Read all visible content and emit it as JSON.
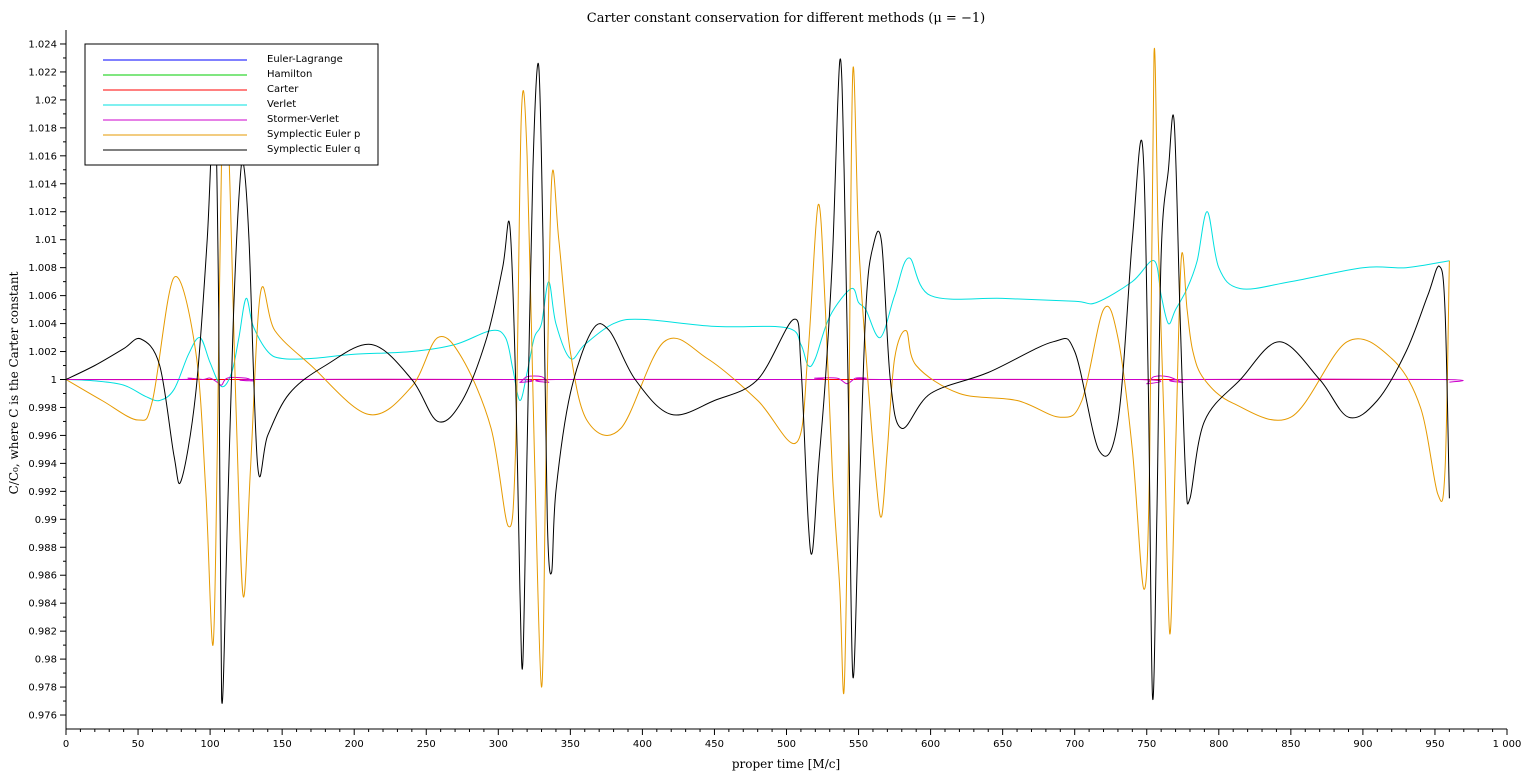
{
  "chart_data": {
    "type": "line",
    "title": "Carter constant conservation for different methods (μ = −1)",
    "xlabel": "proper time [M/c]",
    "ylabel": "C/C₀, where C is the Carter constant",
    "xlim": [
      0,
      1000
    ],
    "ylim": [
      0.975,
      1.025
    ],
    "x_ticks": [
      0,
      50,
      100,
      150,
      200,
      250,
      300,
      350,
      400,
      450,
      500,
      550,
      600,
      650,
      700,
      750,
      800,
      850,
      900,
      950,
      1000
    ],
    "x_tick_labels": [
      "0",
      "50",
      "100",
      "150",
      "200",
      "250",
      "300",
      "350",
      "400",
      "450",
      "500",
      "550",
      "600",
      "650",
      "700",
      "750",
      "800",
      "850",
      "900",
      "950",
      "1 000"
    ],
    "y_ticks": [
      0.976,
      0.978,
      0.98,
      0.982,
      0.984,
      0.986,
      0.988,
      0.99,
      0.992,
      0.994,
      0.996,
      0.998,
      1,
      1.002,
      1.004,
      1.006,
      1.008,
      1.01,
      1.012,
      1.014,
      1.016,
      1.018,
      1.02,
      1.022,
      1.024
    ],
    "y_tick_labels": [
      "0.976",
      "0.978",
      "0.98",
      "0.982",
      "0.984",
      "0.986",
      "0.988",
      "0.99",
      "0.992",
      "0.994",
      "0.996",
      "0.998",
      "1",
      "1.002",
      "1.004",
      "1.006",
      "1.008",
      "1.01",
      "1.012",
      "1.014",
      "1.016",
      "1.018",
      "1.02",
      "1.022",
      "1.024"
    ],
    "grid": false,
    "legend_position": "top-left",
    "series": [
      {
        "name": "Euler-Lagrange",
        "color": "#0000ff",
        "x": [
          0,
          960
        ],
        "y": [
          1.0,
          1.0
        ]
      },
      {
        "name": "Hamilton",
        "color": "#00cc00",
        "x": [
          0,
          960
        ],
        "y": [
          1.0,
          1.0
        ]
      },
      {
        "name": "Carter",
        "color": "#ff0000",
        "x": [
          0,
          960
        ],
        "y": [
          1.0,
          1.0
        ]
      },
      {
        "name": "Verlet",
        "color": "#00e0e0",
        "x": [
          0,
          20,
          40,
          55,
          65,
          75,
          85,
          93,
          100,
          108,
          115,
          120,
          125,
          130,
          140,
          150,
          170,
          200,
          240,
          270,
          295,
          305,
          310,
          315,
          320,
          325,
          330,
          335,
          340,
          350,
          360,
          380,
          400,
          450,
          500,
          510,
          515,
          520,
          530,
          545,
          550,
          555,
          565,
          575,
          585,
          600,
          650,
          700,
          715,
          740,
          755,
          760,
          765,
          770,
          778,
          785,
          792,
          800,
          815,
          850,
          900,
          930,
          960
        ],
        "y": [
          1.0,
          0.9999,
          0.9996,
          0.9988,
          0.9985,
          0.9993,
          1.0018,
          1.003,
          1.0012,
          0.9995,
          1.0005,
          1.003,
          1.0058,
          1.0038,
          1.002,
          1.0015,
          1.0015,
          1.0018,
          1.002,
          1.0025,
          1.0035,
          1.003,
          1.0008,
          0.9985,
          1.0005,
          1.003,
          1.004,
          1.007,
          1.004,
          1.0015,
          1.0025,
          1.004,
          1.0043,
          1.0038,
          1.0037,
          1.0025,
          1.001,
          1.0015,
          1.0045,
          1.0065,
          1.0055,
          1.005,
          1.003,
          1.006,
          1.0087,
          1.006,
          1.0058,
          1.0056,
          1.0055,
          1.007,
          1.0085,
          1.006,
          1.004,
          1.005,
          1.0065,
          1.0085,
          1.012,
          1.008,
          1.0065,
          1.007,
          1.008,
          1.008,
          1.0085
        ]
      },
      {
        "name": "Stormer-Verlet",
        "color": "#cc00cc",
        "x": [
          0,
          80,
          85,
          95,
          100,
          105,
          108,
          112,
          125,
          130,
          135,
          310,
          315,
          320,
          330,
          335,
          340,
          510,
          520,
          535,
          542,
          548,
          555,
          565,
          745,
          750,
          755,
          765,
          775,
          780,
          955,
          960
        ],
        "y": [
          1.0,
          1.0,
          1.0001,
          1.0,
          1.0001,
          0.9998,
          0.9996,
          1.0001,
          1.0001,
          0.9999,
          1.0,
          1.0,
          0.9998,
          1.0002,
          1.0002,
          0.9998,
          1.0,
          1.0,
          1.0001,
          1.0001,
          0.9997,
          1.0001,
          1.0001,
          1.0,
          1.0,
          0.9997,
          1.0002,
          1.0002,
          0.9998,
          1.0,
          1.0,
          0.9998
        ]
      },
      {
        "name": "Symplectic Euler p",
        "color": "#e69a00",
        "x": [
          0,
          25,
          50,
          60,
          75,
          90,
          97,
          102,
          105,
          108,
          112,
          118,
          123,
          128,
          135,
          145,
          170,
          210,
          240,
          258,
          275,
          295,
          307,
          312,
          316,
          320,
          325,
          330,
          333,
          337,
          342,
          350,
          362,
          385,
          415,
          445,
          480,
          507,
          515,
          522,
          527,
          532,
          537,
          540,
          543,
          546,
          550,
          555,
          562,
          566,
          570,
          575,
          583,
          590,
          620,
          660,
          690,
          705,
          720,
          730,
          740,
          748,
          752,
          755,
          758,
          762,
          766,
          770,
          774,
          778,
          782,
          790,
          810,
          850,
          889,
          920,
          940,
          952,
          957,
          960
        ],
        "y": [
          1.0,
          0.9985,
          0.9971,
          0.9985,
          1.0073,
          1.002,
          0.992,
          0.981,
          0.995,
          1.016,
          1.019,
          0.998,
          0.9845,
          0.9935,
          1.0062,
          1.0035,
          1.001,
          0.9975,
          0.9995,
          1.003,
          1.0015,
          0.9965,
          0.9895,
          0.995,
          1.019,
          1.016,
          0.995,
          0.978,
          0.994,
          1.0142,
          1.01,
          1.002,
          0.997,
          0.9965,
          1.0027,
          1.0015,
          0.9985,
          0.9955,
          1.002,
          1.0125,
          1.005,
          0.993,
          0.985,
          0.9778,
          0.995,
          1.022,
          1.01,
          1.002,
          0.993,
          0.9902,
          0.995,
          1.0015,
          1.0035,
          1.001,
          0.999,
          0.9985,
          0.9973,
          0.9985,
          1.005,
          1.003,
          0.995,
          0.985,
          0.994,
          1.0233,
          1.01,
          0.997,
          0.9818,
          0.995,
          1.0087,
          1.005,
          1.002,
          1.0,
          0.9983,
          0.9973,
          1.0027,
          1.0015,
          0.998,
          0.9918,
          0.9935,
          1.0085
        ]
      },
      {
        "name": "Symplectic Euler q",
        "color": "#000000",
        "x": [
          0,
          20,
          40,
          52,
          65,
          75,
          80,
          90,
          98,
          103,
          106,
          108,
          112,
          116,
          120,
          123,
          127,
          133,
          140,
          155,
          180,
          212,
          240,
          258,
          275,
          292,
          303,
          308,
          312,
          315,
          317,
          320,
          324,
          328,
          331,
          334,
          337,
          340,
          350,
          365,
          377,
          395,
          420,
          450,
          480,
          505,
          510,
          515,
          518,
          522,
          527,
          532,
          537,
          540,
          543,
          546,
          550,
          555,
          560,
          566,
          572,
          580,
          600,
          640,
          685,
          700,
          717,
          730,
          740,
          747,
          751,
          754,
          757,
          760,
          765,
          769,
          773,
          777,
          780,
          790,
          815,
          842,
          870,
          890,
          910,
          930,
          945,
          953,
          957,
          960
        ],
        "y": [
          1.0,
          1.001,
          1.0022,
          1.0029,
          1.001,
          0.9945,
          0.9928,
          0.999,
          1.01,
          1.02,
          1.005,
          0.9772,
          0.99,
          1.004,
          1.013,
          1.0155,
          1.01,
          0.9938,
          0.996,
          0.999,
          1.001,
          1.0025,
          1.0,
          0.997,
          0.9985,
          1.003,
          1.008,
          1.011,
          1.0,
          0.985,
          0.9797,
          0.995,
          1.015,
          1.0225,
          1.01,
          0.99,
          0.9862,
          0.992,
          0.999,
          1.0035,
          1.0035,
          1.0,
          0.9975,
          0.9985,
          1.0,
          1.0043,
          1.001,
          0.99,
          0.9877,
          0.9935,
          1.0,
          1.009,
          1.0228,
          1.015,
          0.998,
          0.9788,
          0.99,
          1.005,
          1.0095,
          1.0098,
          1.0,
          0.9965,
          0.999,
          1.0005,
          1.0027,
          1.002,
          0.9949,
          0.997,
          1.01,
          1.0168,
          1.0,
          0.9773,
          0.99,
          1.009,
          1.015,
          1.0185,
          1.005,
          0.993,
          0.9915,
          0.997,
          1.0,
          1.0027,
          1.0,
          0.9973,
          0.9985,
          1.002,
          1.006,
          1.0081,
          1.005,
          0.9915
        ]
      }
    ]
  }
}
